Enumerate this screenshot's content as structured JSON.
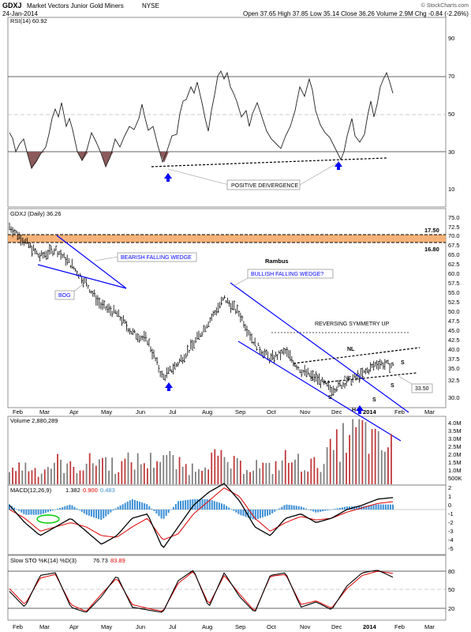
{
  "header": {
    "symbol": "GDXJ",
    "name": "Market Vectors Junior Gold Miners",
    "exchange": "NYSE",
    "date": "24-Jan-2014",
    "quote": "Open 37.65  High 37.85  Low 35.14  Close 36.26  Volume 2.9M  Chg -0.84 (-2.26%)",
    "watermark": "© StockCharts.com"
  },
  "colors": {
    "price": "#000000",
    "wedge": "#0000ff",
    "resistance_band": "#f4a460",
    "volume_up": "#808080",
    "volume_down": "#c0393b",
    "macd_hist": "#3b8fd6",
    "signal": "#e00000",
    "rsi_fill": "#8b5a5a",
    "oval": "#00cc00"
  },
  "x_axis": {
    "months": [
      "Feb",
      "Mar",
      "Apr",
      "May",
      "Jun",
      "Jul",
      "Aug",
      "Sep",
      "Oct",
      "Nov",
      "Dec",
      "2014",
      "Feb",
      "Mar"
    ]
  },
  "rsi": {
    "label": "RSI(14) 60.92",
    "ticks": [
      "90",
      "70",
      "50",
      "30",
      "10"
    ],
    "annotation": "POSITIVE DEIVERGENCE"
  },
  "price": {
    "label": "GDXJ (Daily) 36.26",
    "ticks": [
      "75.0",
      "72.5",
      "70.0",
      "67.5",
      "65.0",
      "62.5",
      "60.0",
      "57.5",
      "55.0",
      "52.5",
      "50.0",
      "47.5",
      "45.0",
      "42.5",
      "40.0",
      "37.5",
      "35.0",
      "32.5",
      "30.0"
    ],
    "levels": {
      "upper": "17.50",
      "lower": "16.80",
      "current": "33.50"
    },
    "annotations": {
      "bearish": "BEARISH FALLING WEDGE",
      "bog": "BOG",
      "rambus": "Rambus",
      "bullish": "BULLISH FALLING WEDGE?",
      "reversing": "REVERSING SYMMETRY UP",
      "nl_upper": "NL",
      "nl_lower": "NL",
      "s": "S",
      "h": "H"
    }
  },
  "volume": {
    "label": "Volume 2,880,289",
    "ticks": [
      "4.0M",
      "3.5M",
      "3.0M",
      "2.5M",
      "2.0M",
      "1.5M",
      "1.0M",
      "500K"
    ]
  },
  "macd": {
    "label": "MACD(12,26,9)",
    "macd": "1.382",
    "signal": "0.900",
    "hist": "0.483",
    "ticks": [
      "2",
      "1",
      "0",
      "-1",
      "-2",
      "-3",
      "-4",
      "-5"
    ]
  },
  "sto": {
    "label": "Slow STO %K(14) %D(3)",
    "k": "76.73",
    "d": "83.89",
    "ticks": [
      "80",
      "50",
      "20"
    ]
  },
  "chart_data": [
    {
      "type": "line",
      "name": "RSI(14)",
      "x": [
        0,
        10,
        20,
        30,
        40,
        50,
        60,
        70,
        80,
        90,
        100,
        110,
        120,
        130,
        140,
        150,
        160,
        170,
        180,
        190,
        200,
        210,
        220,
        230,
        240,
        250
      ],
      "values": [
        45,
        35,
        20,
        38,
        55,
        48,
        30,
        25,
        46,
        40,
        35,
        30,
        26,
        45,
        58,
        70,
        55,
        50,
        32,
        30,
        38,
        28,
        40,
        50,
        65,
        61
      ],
      "ylim": [
        0,
        100
      ]
    },
    {
      "type": "line",
      "name": "GDXJ (Daily)",
      "x_label": "date index",
      "x": [
        0,
        10,
        20,
        30,
        40,
        50,
        60,
        70,
        80,
        90,
        100,
        110,
        120,
        130,
        140,
        150,
        160,
        170,
        180,
        190,
        200,
        210,
        220,
        230,
        240,
        250
      ],
      "values": [
        73,
        69,
        65,
        67,
        63,
        58,
        52,
        50,
        45,
        43,
        33,
        37,
        42,
        48,
        54,
        50,
        42,
        38,
        40,
        35,
        33,
        30,
        32,
        34,
        37,
        36.26
      ],
      "ylim": [
        28,
        76
      ]
    },
    {
      "type": "bar",
      "name": "Volume",
      "values_millions": [
        1.2,
        1.5,
        1.0,
        1.8,
        1.3,
        1.6,
        2.1,
        1.4,
        1.9,
        1.7,
        2.4,
        1.5,
        1.3,
        2.2,
        1.8,
        1.4,
        1.6,
        1.2,
        2.0,
        1.7,
        1.5,
        2.6,
        3.8,
        4.2,
        3.0,
        2.9
      ],
      "ylim": [
        0,
        4.5
      ]
    },
    {
      "type": "line",
      "name": "MACD(12,26,9)",
      "macd": [
        0.5,
        -1.5,
        -3,
        -2,
        -1,
        -2.5,
        -4,
        -3,
        -1,
        -0.5,
        -4.5,
        -2,
        0.5,
        2,
        3,
        1,
        -2,
        -3,
        -1,
        -0.5,
        -1.5,
        -1,
        0,
        0.5,
        1.2,
        1.38
      ],
      "signal": [
        0,
        -1,
        -2.5,
        -2,
        -1.5,
        -2,
        -3,
        -3.2,
        -2,
        -1,
        -3.5,
        -2.8,
        -0.5,
        1,
        2.5,
        1.5,
        -1,
        -2.5,
        -1.5,
        -0.8,
        -1.2,
        -1,
        -0.3,
        0.2,
        0.7,
        0.9
      ],
      "ylim": [
        -5.5,
        2.5
      ]
    },
    {
      "type": "line",
      "name": "Slow STO",
      "k": [
        50,
        20,
        80,
        85,
        20,
        10,
        40,
        80,
        20,
        15,
        10,
        70,
        90,
        20,
        85,
        40,
        10,
        80,
        85,
        20,
        30,
        15,
        60,
        85,
        90,
        76.73
      ],
      "d": [
        55,
        25,
        75,
        82,
        25,
        12,
        45,
        75,
        25,
        18,
        12,
        65,
        88,
        25,
        80,
        45,
        12,
        78,
        82,
        25,
        32,
        18,
        55,
        80,
        88,
        83.89
      ],
      "ylim": [
        0,
        100
      ]
    }
  ]
}
